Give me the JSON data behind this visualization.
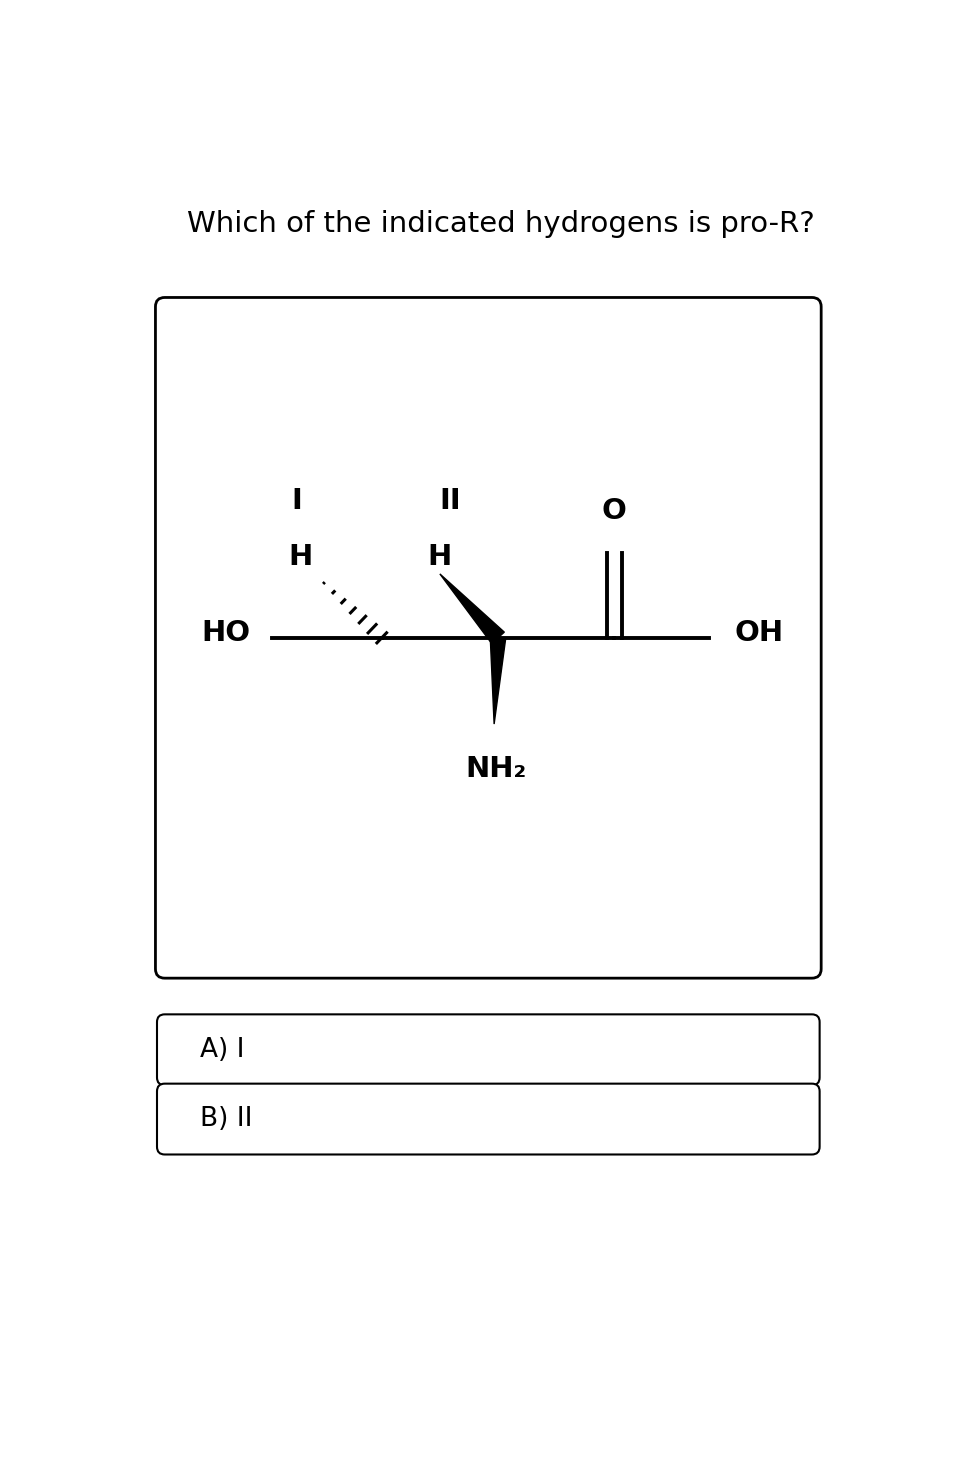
{
  "title": "Which of the indicated hydrogens is pro-R?",
  "title_fontsize": 21,
  "answer_A": "A) I",
  "answer_B": "B) II",
  "bg_color": "#ffffff",
  "box_color": "#000000",
  "answer_fontsize": 19,
  "mol_label_I": "I",
  "mol_label_II": "II",
  "mol_H1": "H",
  "mol_H2": "H",
  "mol_HO": "HO",
  "mol_OH": "OH",
  "mol_O": "O",
  "mol_NH2": "NH₂",
  "mol_fontsize": 21
}
